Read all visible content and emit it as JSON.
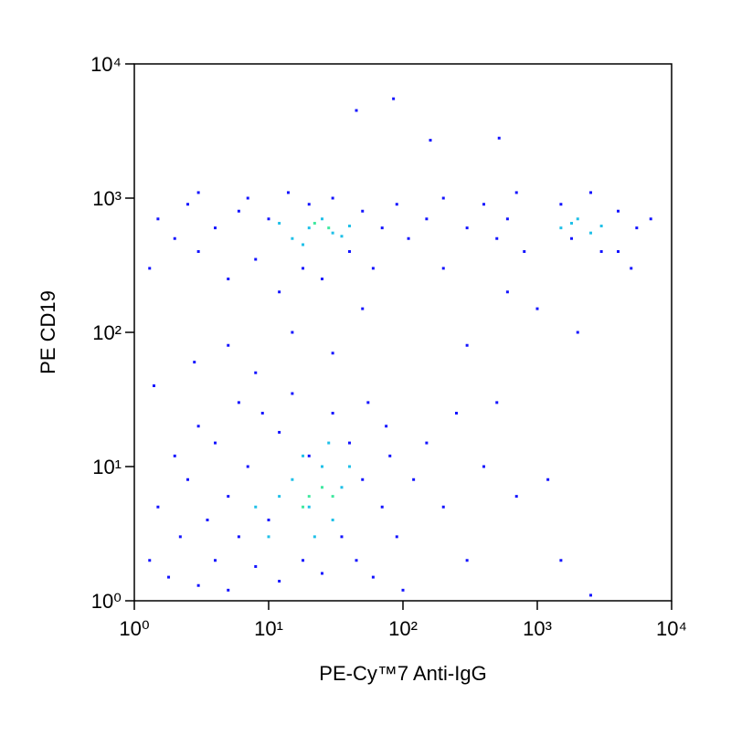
{
  "chart_data": {
    "type": "scatter",
    "xlabel": "PE-Cy™7 Anti-IgG",
    "ylabel": "PE CD19",
    "xscale": "log",
    "yscale": "log",
    "xlim": [
      1,
      10000
    ],
    "ylim": [
      1,
      10000
    ],
    "xticks": [
      {
        "value": 1,
        "label": "10⁰"
      },
      {
        "value": 10,
        "label": "10¹"
      },
      {
        "value": 100,
        "label": "10²"
      },
      {
        "value": 1000,
        "label": "10³"
      },
      {
        "value": 10000,
        "label": "10⁴"
      }
    ],
    "yticks": [
      {
        "value": 1,
        "label": "10⁰"
      },
      {
        "value": 10,
        "label": "10¹"
      },
      {
        "value": 100,
        "label": "10²"
      },
      {
        "value": 1000,
        "label": "10³"
      },
      {
        "value": 10000,
        "label": "10⁴"
      }
    ],
    "series": [
      {
        "color": "#1414ff",
        "x": [
          1.3,
          1.5,
          1.8,
          2,
          2.2,
          2.5,
          3,
          3,
          3.5,
          4,
          4,
          5,
          5,
          6,
          6,
          7,
          8,
          9,
          10,
          12,
          12,
          15,
          18,
          20,
          25,
          30,
          35,
          40,
          45,
          50,
          55,
          60,
          70,
          75,
          80,
          90,
          100,
          120,
          150,
          200,
          250,
          300,
          400,
          500,
          700,
          1200,
          1500,
          2500,
          1.4,
          2.8,
          5,
          8,
          15,
          30,
          50,
          200,
          300,
          600,
          1000,
          2000,
          4000,
          5000,
          1.3,
          1.5,
          2,
          2.5,
          3,
          3,
          4,
          5,
          6,
          7,
          8,
          10,
          12,
          14,
          18,
          20,
          25,
          30,
          40,
          50,
          60,
          70,
          90,
          110,
          150,
          200,
          300,
          400,
          500,
          700,
          600,
          800,
          1500,
          1800,
          2500,
          3000,
          4000,
          5500,
          7000,
          85,
          45,
          160,
          520
        ],
        "values": [
          2,
          5,
          1.5,
          12,
          3,
          8,
          1.3,
          20,
          4,
          2,
          15,
          6,
          1.2,
          30,
          3,
          10,
          1.8,
          25,
          4,
          1.4,
          18,
          35,
          2,
          12,
          1.6,
          25,
          3,
          15,
          2,
          8,
          30,
          1.5,
          5,
          20,
          12,
          3,
          1.2,
          8,
          15,
          5,
          25,
          2,
          10,
          30,
          6,
          8,
          2,
          1.1,
          40,
          60,
          80,
          50,
          100,
          70,
          150,
          300,
          80,
          200,
          150,
          100,
          400,
          300,
          300,
          700,
          500,
          900,
          400,
          1100,
          600,
          250,
          800,
          1000,
          350,
          700,
          200,
          1100,
          300,
          900,
          250,
          1000,
          400,
          800,
          300,
          600,
          900,
          500,
          700,
          1000,
          600,
          900,
          500,
          1100,
          700,
          400,
          900,
          500,
          1100,
          400,
          800,
          600,
          700,
          5500,
          4500,
          2700,
          2800
        ]
      },
      {
        "color": "#20c0e8",
        "x": [
          15,
          20,
          25,
          12,
          30,
          18,
          10,
          35,
          22,
          8,
          40,
          28,
          15,
          20,
          30,
          25,
          40,
          12,
          18,
          35,
          1500,
          2000,
          2500,
          1800,
          3000
        ],
        "values": [
          8,
          5,
          10,
          6,
          4,
          12,
          3,
          7,
          3,
          5,
          10,
          15,
          500,
          600,
          550,
          700,
          620,
          650,
          450,
          520,
          600,
          700,
          550,
          650,
          620
        ]
      },
      {
        "color": "#40e8a0",
        "x": [
          20,
          25,
          18,
          30,
          22,
          28
        ],
        "values": [
          6,
          7,
          5,
          6,
          650,
          600
        ]
      }
    ]
  }
}
